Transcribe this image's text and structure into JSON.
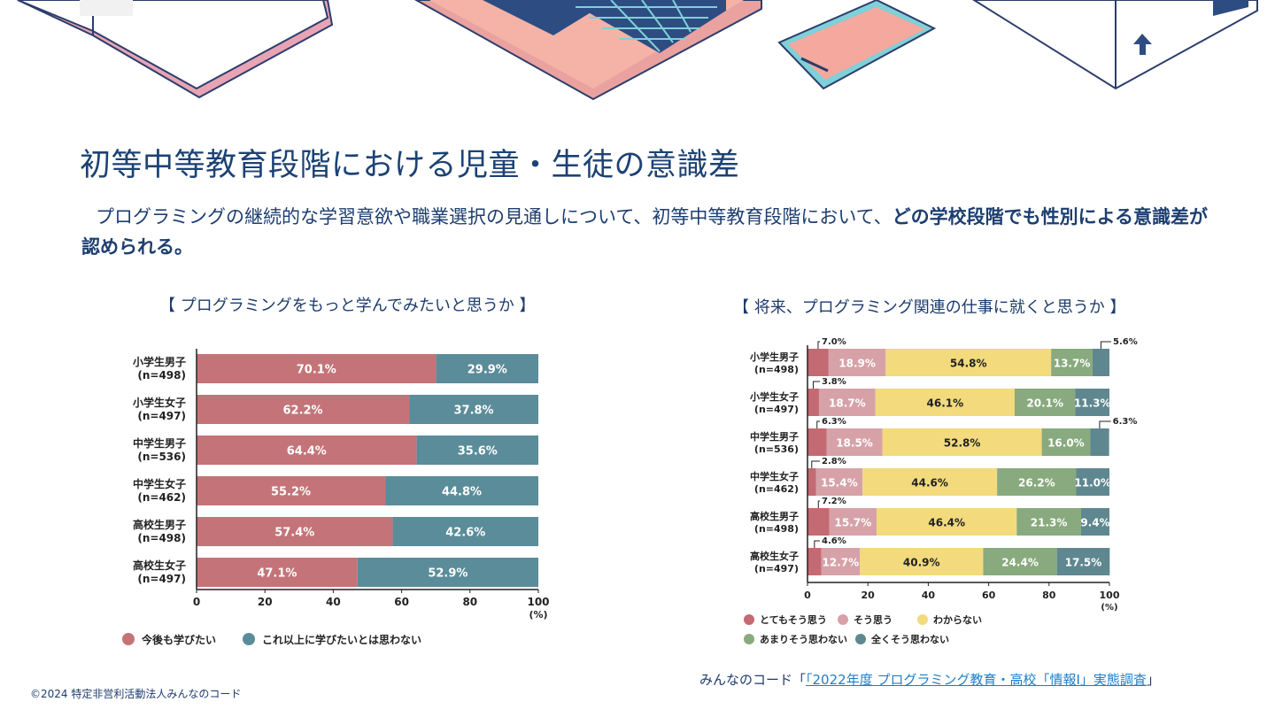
{
  "header": {
    "title": "初等中等教育段階における児童・生徒の意識差",
    "lead_normal": "プログラミングの継続的な学習意欲や職業選択の見通しについて、初等中等教育段階において、",
    "lead_bold": "どの学校段階でも性別による意識差が認められる。"
  },
  "footer": {
    "copyright": "©2024 特定非営利活動法人みんなのコード",
    "source_prefix": "みんなのコード「",
    "source_link": "「2022年度 プログラミング教育・高校「情報Ⅰ」実態調査",
    "source_suffix": "」"
  },
  "colors": {
    "c1_yes": "#c47478",
    "c1_no": "#5b8c99",
    "s1": "#c46a72",
    "s2": "#d6a2a8",
    "s3": "#f2da7d",
    "s4": "#88aa7e",
    "s5": "#5f8790",
    "title": "#1c4274"
  },
  "chart_data": [
    {
      "type": "bar",
      "orientation": "horizontal",
      "stacked": true,
      "title": "【 プログラミングをもっと学んでみたいと思うか 】",
      "categories": [
        {
          "name": "小学生男子",
          "n": "(n=498)"
        },
        {
          "name": "小学生女子",
          "n": "(n=497)"
        },
        {
          "name": "中学生男子",
          "n": "(n=536)"
        },
        {
          "name": "中学生女子",
          "n": "(n=462)"
        },
        {
          "name": "高校生男子",
          "n": "(n=498)"
        },
        {
          "name": "高校生女子",
          "n": "(n=497)"
        }
      ],
      "series": [
        {
          "name": "今後も学びたい",
          "values": [
            70.1,
            62.2,
            64.4,
            55.2,
            57.4,
            47.1
          ]
        },
        {
          "name": "これ以上に学びたいとは思わない",
          "values": [
            29.9,
            37.8,
            35.6,
            44.8,
            42.6,
            52.9
          ]
        }
      ],
      "xlim": [
        0,
        100
      ],
      "xticks": [
        "0",
        "20",
        "40",
        "60",
        "80",
        "100"
      ],
      "unit": "(%)",
      "legend_position": "bottom"
    },
    {
      "type": "bar",
      "orientation": "horizontal",
      "stacked": true,
      "title": "【 将来、プログラミング関連の仕事に就くと思うか 】",
      "categories": [
        {
          "name": "小学生男子",
          "n": "(n=498)"
        },
        {
          "name": "小学生女子",
          "n": "(n=497)"
        },
        {
          "name": "中学生男子",
          "n": "(n=536)"
        },
        {
          "name": "中学生女子",
          "n": "(n=462)"
        },
        {
          "name": "高校生男子",
          "n": "(n=498)"
        },
        {
          "name": "高校生女子",
          "n": "(n=497)"
        }
      ],
      "series": [
        {
          "name": "とてもそう思う",
          "values": [
            7.0,
            3.8,
            6.3,
            2.8,
            7.2,
            4.6
          ]
        },
        {
          "name": "そう思う",
          "values": [
            18.9,
            18.7,
            18.5,
            15.4,
            15.7,
            12.7
          ]
        },
        {
          "name": "わからない",
          "values": [
            54.8,
            46.1,
            52.8,
            44.6,
            46.4,
            40.9
          ]
        },
        {
          "name": "あまりそう思わない",
          "values": [
            13.7,
            20.1,
            16.0,
            26.2,
            21.3,
            24.4
          ]
        },
        {
          "name": "全くそう思わない",
          "values": [
            5.6,
            11.3,
            6.3,
            11.0,
            9.4,
            17.5
          ]
        }
      ],
      "xlim": [
        0,
        100
      ],
      "xticks": [
        "0",
        "20",
        "40",
        "60",
        "80",
        "100"
      ],
      "unit": "(%)",
      "legend_position": "bottom"
    }
  ]
}
